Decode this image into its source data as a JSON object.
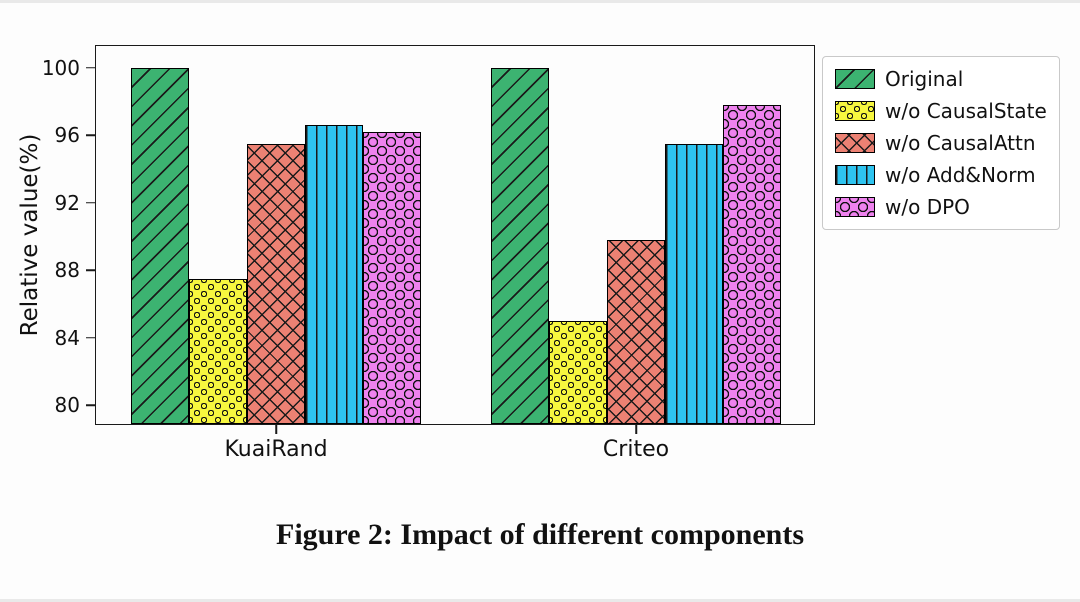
{
  "figure": {
    "caption": "Figure 2: Impact of different components"
  },
  "chart_data": {
    "type": "bar",
    "title": "",
    "xlabel": "",
    "ylabel": "Relative value(%)",
    "categories": [
      "KuaiRand",
      "Criteo"
    ],
    "yticks": [
      80,
      84,
      88,
      92,
      96,
      100
    ],
    "ylim": [
      78.9,
      101.3
    ],
    "grid": false,
    "legend_position": "upper right, outside axes",
    "series": [
      {
        "name": "Original",
        "color": "#3cb371",
        "hatch": "/",
        "values": [
          100.0,
          100.0
        ]
      },
      {
        "name": "w/o CausalState",
        "color": "#f7f73f",
        "hatch": "o",
        "values": [
          87.5,
          85.0
        ]
      },
      {
        "name": "w/o CausalAttn",
        "color": "#ec8173",
        "hatch": "xx",
        "values": [
          95.5,
          89.8
        ]
      },
      {
        "name": "w/o Add&Norm",
        "color": "#2ec4f0",
        "hatch": "||",
        "values": [
          96.6,
          95.5
        ]
      },
      {
        "name": "w/o DPO",
        "color": "#ee82ee",
        "hatch": "O",
        "values": [
          96.2,
          97.8
        ]
      }
    ]
  }
}
